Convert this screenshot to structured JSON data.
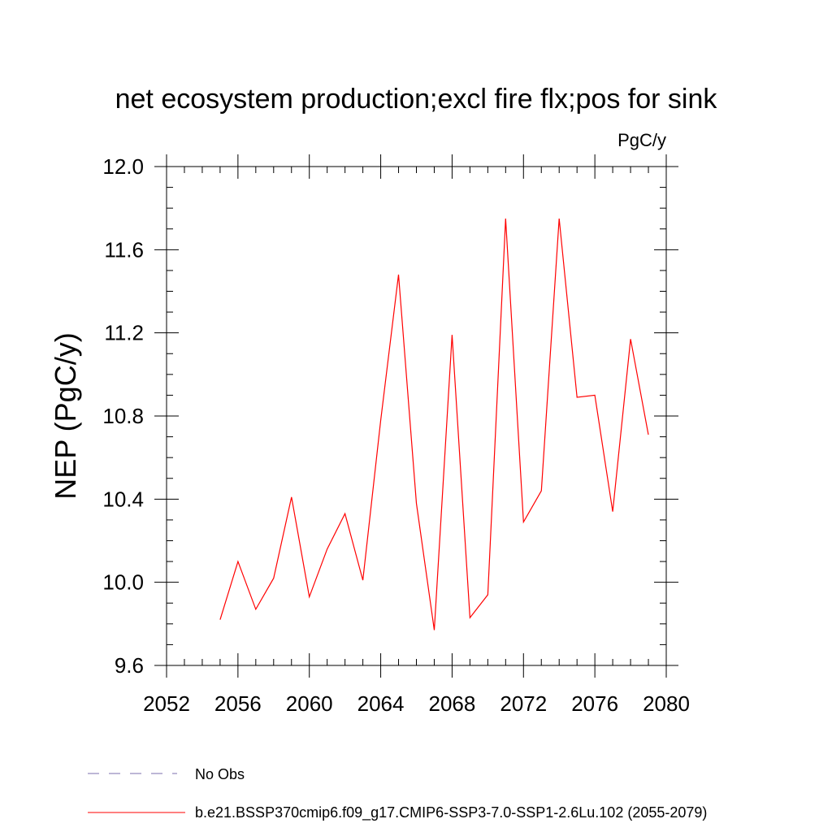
{
  "chart_data": {
    "type": "line",
    "title": "net ecosystem production;excl fire flx;pos for sink",
    "units": "PgC/y",
    "xlabel": "",
    "ylabel": "NEP  (PgC/y)",
    "xlim": [
      2052,
      2080
    ],
    "ylim": [
      9.6,
      12.0
    ],
    "x_major_ticks": [
      2052,
      2056,
      2060,
      2064,
      2068,
      2072,
      2076,
      2080
    ],
    "x_minor_step": 1,
    "y_major_ticks": [
      9.6,
      10.0,
      10.4,
      10.8,
      11.2,
      11.6,
      12.0
    ],
    "y_tick_labels": [
      "9.6",
      "10.0",
      "10.4",
      "10.8",
      "11.2",
      "11.6",
      "12.0"
    ],
    "y_minor_step": 0.1,
    "grid": false,
    "series": [
      {
        "name": "b.e21.BSSP370cmip6.f09_g17.CMIP6-SSP3-7.0-SSP1-2.6Lu.102 (2055-2079)",
        "color": "#ff0000",
        "x": [
          2055,
          2056,
          2057,
          2058,
          2059,
          2060,
          2061,
          2062,
          2063,
          2064,
          2065,
          2066,
          2067,
          2068,
          2069,
          2070,
          2071,
          2072,
          2073,
          2074,
          2075,
          2076,
          2077,
          2078,
          2079
        ],
        "y": [
          9.82,
          10.1,
          9.87,
          10.02,
          10.41,
          9.93,
          10.16,
          10.33,
          10.01,
          10.78,
          11.48,
          10.38,
          9.77,
          11.19,
          9.83,
          9.94,
          11.75,
          10.29,
          10.44,
          11.75,
          10.89,
          10.9,
          10.34,
          11.17,
          10.71
        ]
      }
    ],
    "legend": {
      "position": "bottom",
      "entries": [
        {
          "label": "No Obs",
          "color": "#7b6fae",
          "style": "dashed"
        },
        {
          "label": "b.e21.BSSP370cmip6.f09_g17.CMIP6-SSP3-7.0-SSP1-2.6Lu.102 (2055-2079)",
          "color": "#ff0000",
          "style": "solid"
        }
      ]
    }
  }
}
